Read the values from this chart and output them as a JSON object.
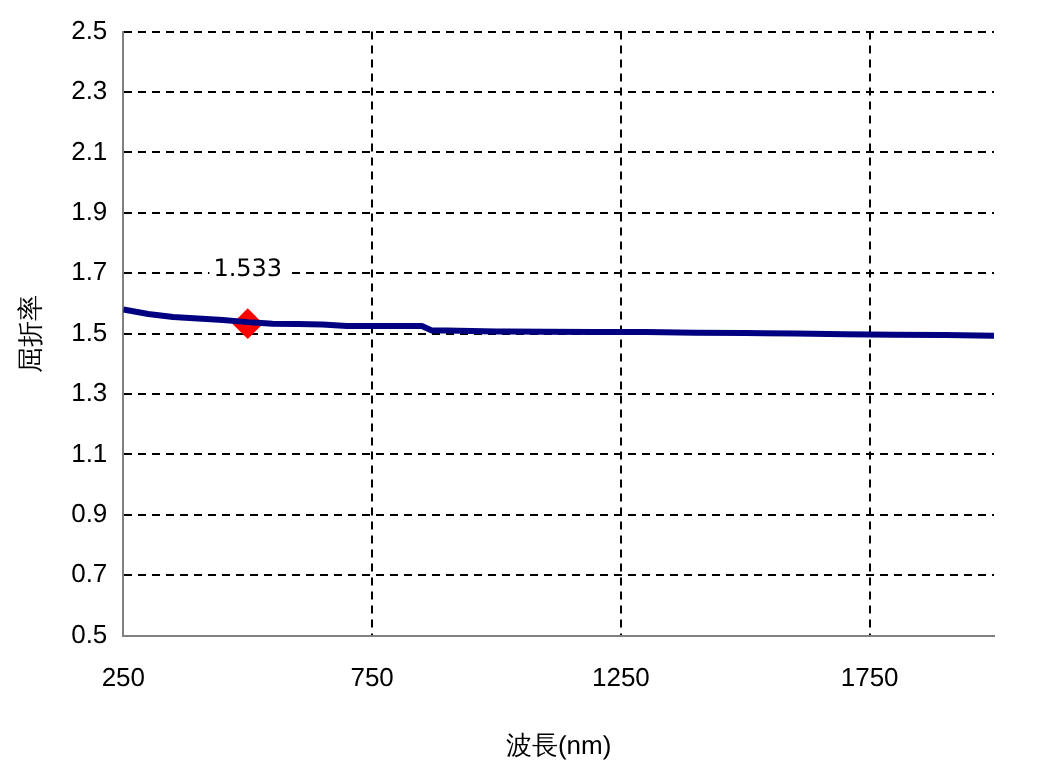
{
  "chart_data": {
    "type": "line",
    "xlabel": "波長(nm)",
    "ylabel": "屈折率",
    "xlim": [
      250,
      2000
    ],
    "xticks": [
      250,
      750,
      1250,
      1750
    ],
    "ylim": [
      0.5,
      2.5
    ],
    "yticks": [
      0.5,
      0.7,
      0.9,
      1.1,
      1.3,
      1.5,
      1.7,
      1.9,
      2.1,
      2.3,
      2.5
    ],
    "grid": true,
    "line_style": "solid",
    "series": [
      {
        "type": "line",
        "color": "#000080",
        "marker": "none",
        "x": [
          250,
          300,
          350,
          400,
          450,
          500,
          550,
          600,
          650,
          700,
          750,
          800,
          850,
          870,
          900,
          1000,
          1100,
          1200,
          1300,
          1400,
          1500,
          1600,
          1700,
          1800,
          1900,
          2000
        ],
        "values": [
          1.58,
          1.565,
          1.555,
          1.55,
          1.545,
          1.538,
          1.533,
          1.532,
          1.53,
          1.525,
          1.525,
          1.525,
          1.525,
          1.51,
          1.51,
          1.507,
          1.506,
          1.505,
          1.505,
          1.503,
          1.502,
          1.5,
          1.498,
          1.496,
          1.495,
          1.493
        ]
      },
      {
        "type": "scatter",
        "color": "#ff0000",
        "marker": "diamond",
        "x": [
          500
        ],
        "values": [
          1.533
        ],
        "value_labels": [
          "1.533"
        ]
      }
    ]
  }
}
